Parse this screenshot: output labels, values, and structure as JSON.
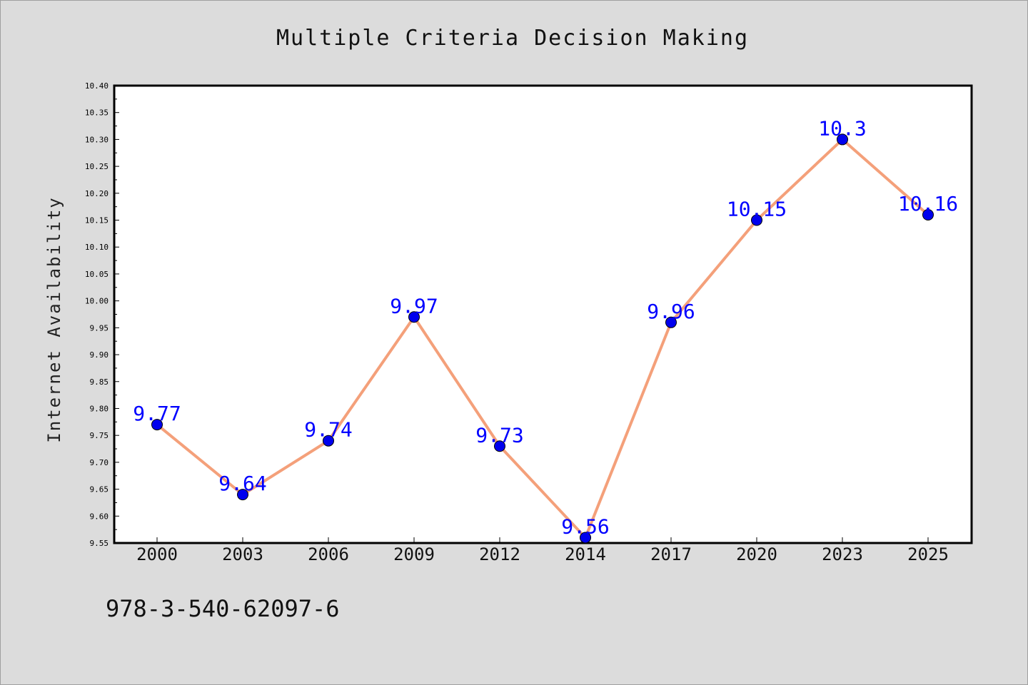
{
  "chart_data": {
    "type": "line",
    "title": "Multiple Criteria Decision Making",
    "xlabel": "",
    "ylabel": "Internet Availability",
    "categories": [
      "2000",
      "2003",
      "2006",
      "2009",
      "2012",
      "2014",
      "2017",
      "2020",
      "2023",
      "2025"
    ],
    "series": [
      {
        "values": [
          9.77,
          9.64,
          9.74,
          9.97,
          9.73,
          9.56,
          9.96,
          10.15,
          10.3,
          10.16
        ],
        "labels": [
          "9.77",
          "9.64",
          "9.74",
          "9.97",
          "9.73",
          "9.56",
          "9.96",
          "10.15",
          "10.3",
          "10.16"
        ],
        "line_color": "#f4a07a",
        "marker_color": "#0000ee"
      }
    ],
    "ylim": [
      9.55,
      10.4
    ],
    "yticks": [
      "9.55",
      "9.60",
      "9.65",
      "9.70",
      "9.75",
      "9.80",
      "9.85",
      "9.90",
      "9.95",
      "10.00",
      "10.05",
      "10.10",
      "10.15",
      "10.20",
      "10.25",
      "10.30",
      "10.35",
      "10.40"
    ],
    "grid": false,
    "legend": "none"
  },
  "footer_text": "978-3-540-62097-6",
  "colors": {
    "background": "#dcdcdc",
    "plot_background": "#ffffff",
    "label_color": "#0000ff"
  }
}
